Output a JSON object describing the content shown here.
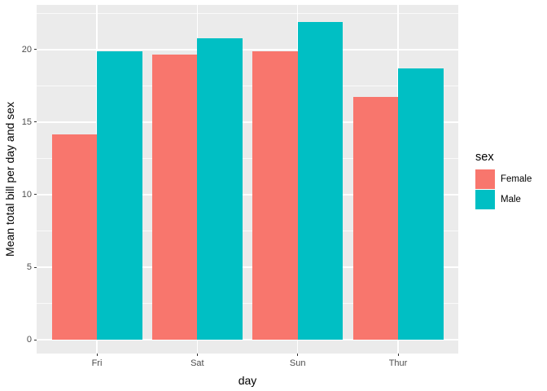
{
  "chart_data": {
    "type": "bar",
    "title": "",
    "categories": [
      "Fri",
      "Sat",
      "Sun",
      "Thur"
    ],
    "series": [
      {
        "name": "Female",
        "color": "#F8766D",
        "values": [
          14.15,
          19.68,
          19.87,
          16.72
        ]
      },
      {
        "name": "Male",
        "color": "#00BFC4",
        "values": [
          19.86,
          20.8,
          21.89,
          18.71
        ]
      }
    ],
    "xlabel": "day",
    "ylabel": "Mean total bill per day and sex",
    "yticks": [
      0,
      5,
      10,
      15,
      20
    ],
    "yminor": [
      2.5,
      7.5,
      12.5,
      17.5,
      22.5
    ],
    "ylim": [
      -0.95,
      23.08
    ],
    "xlim": [
      0.4,
      4.6
    ],
    "bar_group_width": 0.9,
    "grid": true,
    "legend": {
      "title": "sex",
      "position": "right",
      "entries": [
        "Female",
        "Male"
      ]
    },
    "colors": {
      "panel_bg": "#EBEBEB",
      "gridline": "#FFFFFF",
      "tick_label": "#4D4D4D",
      "axis_title": "#000000"
    }
  }
}
